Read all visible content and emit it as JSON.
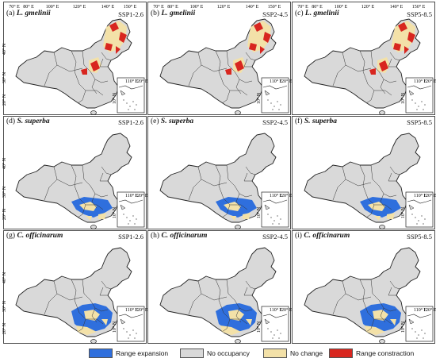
{
  "panels": [
    {
      "label": "(a)",
      "species": "L. gmelinii",
      "scenario": "SSP1-2.6",
      "distribution": "north"
    },
    {
      "label": "(b)",
      "species": "L. gmelinii",
      "scenario": "SSP2-4.5",
      "distribution": "north"
    },
    {
      "label": "(c)",
      "species": "L. gmelinii",
      "scenario": "SSP5-8.5",
      "distribution": "north"
    },
    {
      "label": "(d)",
      "species": "S. superba",
      "scenario": "SSP1-2.6",
      "distribution": "south"
    },
    {
      "label": "(e)",
      "species": "S. superba",
      "scenario": "SSP2-4.5",
      "distribution": "south"
    },
    {
      "label": "(f)",
      "species": "S. superba",
      "scenario": "SSP5-8.5",
      "distribution": "south"
    },
    {
      "label": "(g)",
      "species": "C. officinarum",
      "scenario": "SSP1-2.6",
      "distribution": "southcentral"
    },
    {
      "label": "(h)",
      "species": "C. officinarum",
      "scenario": "SSP2-4.5",
      "distribution": "southcentral"
    },
    {
      "label": "(i)",
      "species": "C. officinarum",
      "scenario": "SSP5-8.5",
      "distribution": "southcentral"
    }
  ],
  "axes": {
    "lon_ticks": [
      "70° E",
      "80° E",
      "100° E",
      "120° E",
      "140° E",
      "150° E"
    ],
    "lat_ticks": [
      "40° N",
      "30° N",
      "20° N"
    ],
    "inset_lon": [
      "110° E",
      "120° E"
    ],
    "inset_lat": [
      "10° N"
    ]
  },
  "legend": [
    {
      "label": "Range expansion",
      "color": "#2f6fdd"
    },
    {
      "label": "No occupancy",
      "color": "#d9d9d9"
    },
    {
      "label": "No change",
      "color": "#f3e1a8"
    },
    {
      "label": "Range constraction",
      "color": "#d8261f"
    }
  ]
}
